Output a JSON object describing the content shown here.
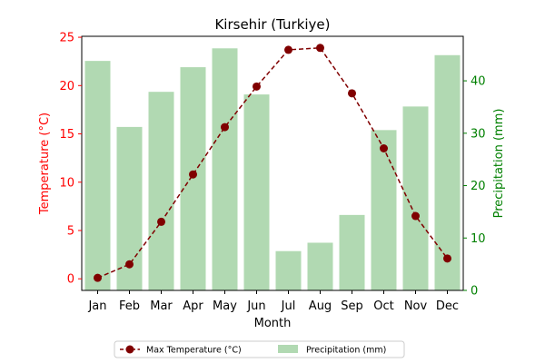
{
  "chart_data": {
    "type": "bar",
    "title": "Kirsehir (Turkiye)",
    "xlabel": "Month",
    "categories": [
      "Jan",
      "Feb",
      "Mar",
      "Apr",
      "May",
      "Jun",
      "Jul",
      "Aug",
      "Sep",
      "Oct",
      "Nov",
      "Dec"
    ],
    "series": [
      {
        "name": "Max Temperature (°C)",
        "type": "line",
        "axis": "left",
        "color": "#800000",
        "style": "dashed",
        "marker": "circle",
        "values": [
          0.1,
          1.5,
          5.9,
          10.8,
          15.7,
          19.9,
          23.7,
          23.9,
          19.2,
          13.5,
          6.5,
          2.1
        ]
      },
      {
        "name": "Precipitation (mm)",
        "type": "bar",
        "axis": "right",
        "color": "#b1d9b2",
        "values": [
          43.8,
          31.2,
          37.9,
          42.6,
          46.2,
          37.4,
          7.5,
          9.1,
          14.4,
          30.6,
          35.1,
          44.9
        ]
      }
    ],
    "y_left": {
      "label": "Temperature (°C)",
      "ylim": [
        -1.2,
        25.1
      ],
      "ticks": [
        0,
        5,
        10,
        15,
        20,
        25
      ],
      "color": "#ff0000"
    },
    "y_right": {
      "label": "Precipitation (mm)",
      "ylim": [
        0,
        48.5
      ],
      "ticks": [
        0,
        10,
        20,
        30,
        40
      ],
      "color": "#008000"
    },
    "grid": false,
    "legend": {
      "placement": "bottom-center",
      "entries": [
        "Max Temperature (°C)",
        "Precipitation (mm)"
      ]
    }
  }
}
